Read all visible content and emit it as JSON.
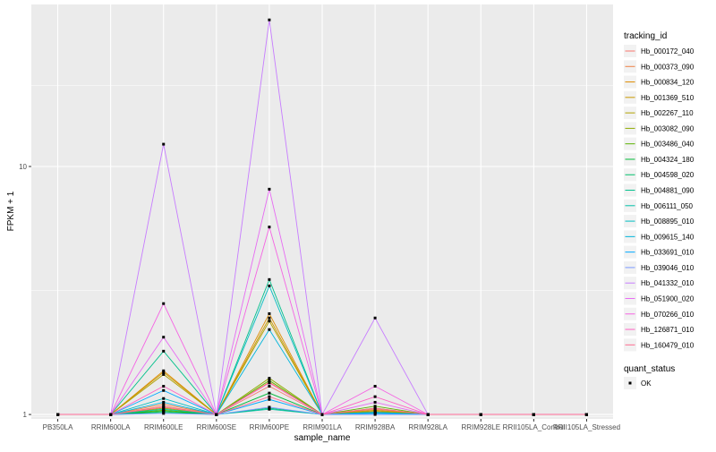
{
  "chart_data": {
    "type": "line",
    "xlabel": "sample_name",
    "ylabel": "FPKM + 1",
    "y_scale": "log10",
    "ylim": [
      0.96,
      45
    ],
    "y_ticks": [
      1,
      10
    ],
    "grid": true,
    "legend_position": "right",
    "legend_title": "tracking_id",
    "status_legend_title": "quant_status",
    "status_legend_labels": [
      "OK"
    ],
    "categories": [
      "PB350LA",
      "RRIM600LA",
      "RRIM600LE",
      "RRIM600SE",
      "RRIM600PE",
      "RRIM901LA",
      "RRIM928BA",
      "RRIM928LA",
      "RRIM928LE",
      "RRII105LA_Control",
      "RRII105LA_Stressed"
    ],
    "series": [
      {
        "name": "Hb_000172_040",
        "color": "#F8766D",
        "values": [
          1,
          1,
          1.08,
          1,
          1.3,
          1,
          1.05,
          1,
          1,
          1,
          1
        ]
      },
      {
        "name": "Hb_000373_090",
        "color": "#EE8044",
        "values": [
          1,
          1,
          1.1,
          1,
          1.35,
          1,
          1.03,
          1,
          1,
          1,
          1
        ]
      },
      {
        "name": "Hb_000834_120",
        "color": "#DE8C00",
        "values": [
          1,
          1,
          1.5,
          1,
          2.55,
          1,
          1.02,
          1,
          1,
          1,
          1
        ]
      },
      {
        "name": "Hb_001369_510",
        "color": "#C99800",
        "values": [
          1,
          1,
          1.48,
          1,
          2.45,
          1,
          1.04,
          1,
          1,
          1,
          1
        ]
      },
      {
        "name": "Hb_002267_110",
        "color": "#B0A100",
        "values": [
          1,
          1,
          1.45,
          1,
          2.38,
          1,
          1.03,
          1,
          1,
          1,
          1
        ]
      },
      {
        "name": "Hb_003082_090",
        "color": "#8FAA00",
        "values": [
          1,
          1,
          1.06,
          1,
          1.4,
          1,
          1.06,
          1,
          1,
          1,
          1
        ]
      },
      {
        "name": "Hb_003486_040",
        "color": "#5BB300",
        "values": [
          1,
          1,
          1.04,
          1,
          1.37,
          1,
          1.08,
          1,
          1,
          1,
          1
        ]
      },
      {
        "name": "Hb_004324_180",
        "color": "#00BA38",
        "values": [
          1,
          1,
          1.03,
          1,
          1.22,
          1,
          1.02,
          1,
          1,
          1,
          1
        ]
      },
      {
        "name": "Hb_004598_020",
        "color": "#00BE6C",
        "values": [
          1,
          1,
          1.02,
          1,
          1.06,
          1,
          1.01,
          1,
          1,
          1,
          1
        ]
      },
      {
        "name": "Hb_004881_090",
        "color": "#00C08B",
        "values": [
          1,
          1,
          1.8,
          1,
          3.5,
          1,
          1.02,
          1,
          1,
          1,
          1
        ]
      },
      {
        "name": "Hb_006111_050",
        "color": "#00C0A7",
        "values": [
          1,
          1,
          1.05,
          1,
          1.05,
          1,
          1.01,
          1,
          1,
          1,
          1
        ]
      },
      {
        "name": "Hb_008895_010",
        "color": "#00BDC2",
        "values": [
          1,
          1,
          1.16,
          1,
          3.3,
          1,
          1.01,
          1,
          1,
          1,
          1
        ]
      },
      {
        "name": "Hb_009615_140",
        "color": "#00B5DA",
        "values": [
          1,
          1,
          1.12,
          1,
          2.2,
          1,
          1.02,
          1,
          1,
          1,
          1
        ]
      },
      {
        "name": "Hb_033691_010",
        "color": "#00A9FF",
        "values": [
          1,
          1,
          1.25,
          1,
          1.15,
          1,
          1.01,
          1,
          1,
          1,
          1
        ]
      },
      {
        "name": "Hb_039046_010",
        "color": "#7997FF",
        "values": [
          1,
          1,
          1.01,
          1,
          1.07,
          1,
          1.0,
          1,
          1,
          1,
          1
        ]
      },
      {
        "name": "Hb_041332_010",
        "color": "#C77CFF",
        "values": [
          1,
          1,
          12.3,
          1,
          39.0,
          1,
          2.45,
          1,
          1,
          1,
          1
        ]
      },
      {
        "name": "Hb_051900_020",
        "color": "#E76BF3",
        "values": [
          1,
          1,
          2.05,
          1,
          8.1,
          1,
          1.12,
          1,
          1,
          1,
          1
        ]
      },
      {
        "name": "Hb_070266_010",
        "color": "#F564E3",
        "values": [
          1,
          1,
          2.8,
          1,
          5.7,
          1,
          1.3,
          1,
          1,
          1,
          1
        ]
      },
      {
        "name": "Hb_126871_010",
        "color": "#FF61C3",
        "values": [
          1,
          1,
          1.3,
          1,
          1.34,
          1,
          1.18,
          1,
          1,
          1,
          1
        ]
      },
      {
        "name": "Hb_160479_010",
        "color": "#FF6C91",
        "values": [
          1,
          1,
          1.07,
          1,
          1.18,
          1,
          1.06,
          1,
          1,
          1,
          1
        ]
      }
    ]
  }
}
